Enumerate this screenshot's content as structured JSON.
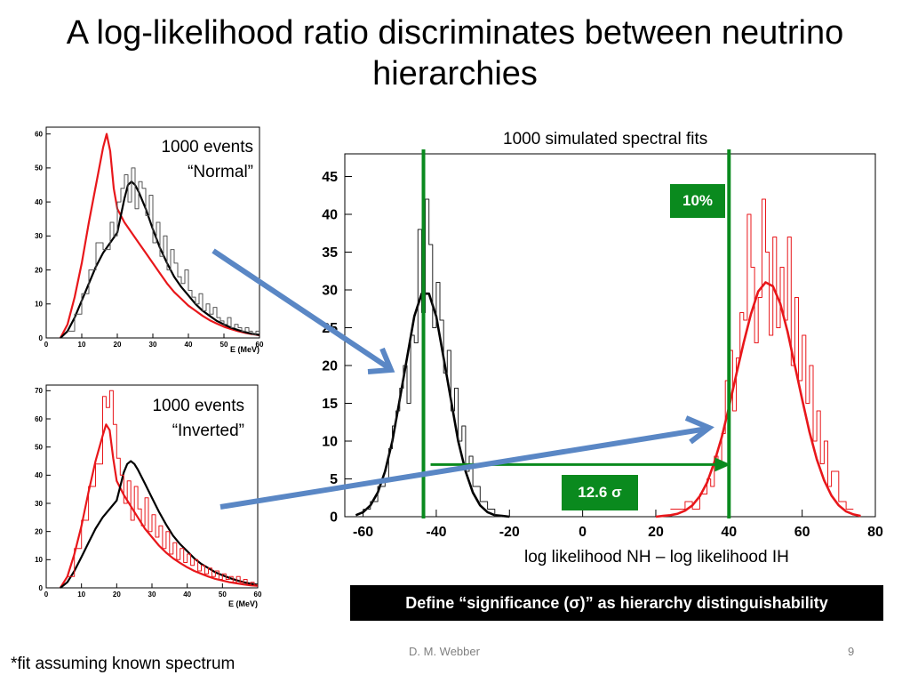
{
  "slide": {
    "title": "A log-likelihood ratio discriminates between neutrino hierarchies",
    "footnote": "*fit assuming known spectrum",
    "author": "D. M. Webber",
    "page_number": "9",
    "definition_box": "Define “significance (σ)” as hierarchy distinguishability",
    "arrow_color": "#5a87c5"
  },
  "chart_data": [
    {
      "type": "line",
      "annotation": "1000 events “Normal”",
      "xlabel": "E (MeV)",
      "xlim": [
        0,
        60
      ],
      "ylim": [
        0,
        62
      ],
      "xticks": [
        0,
        10,
        20,
        30,
        40,
        50,
        60
      ],
      "yticks": [
        0,
        10,
        20,
        30,
        40,
        50,
        60
      ],
      "series": [
        {
          "color": "#e8171b",
          "x": [
            4,
            6,
            8,
            10,
            12,
            14,
            16,
            17,
            18,
            19,
            20,
            22,
            24,
            26,
            28,
            30,
            32,
            34,
            36,
            38,
            40,
            42,
            44,
            46,
            48,
            50,
            52,
            54,
            56,
            58,
            60
          ],
          "values": [
            0,
            4,
            12,
            22,
            34,
            45,
            56,
            60,
            55,
            44,
            38,
            34,
            31,
            28,
            25,
            22,
            19,
            16,
            13.5,
            11.5,
            9.5,
            8,
            6.5,
            5.2,
            4.2,
            3.3,
            2.6,
            2,
            1.5,
            1.1,
            0.8
          ]
        },
        {
          "color": "#000000",
          "x": [
            4,
            6,
            8,
            10,
            12,
            14,
            16,
            18,
            20,
            21,
            22,
            23,
            24,
            25,
            26,
            28,
            30,
            32,
            34,
            36,
            38,
            40,
            42,
            44,
            46,
            48,
            50,
            52,
            54,
            56,
            58,
            60
          ],
          "values": [
            0,
            2,
            6,
            11,
            16,
            21,
            25,
            28,
            31,
            36,
            41,
            45,
            46,
            45,
            43,
            38,
            32,
            26.5,
            22,
            18,
            15,
            12.5,
            10,
            8,
            6.5,
            5,
            4,
            3,
            2.3,
            1.7,
            1.2,
            0.9
          ]
        },
        {
          "color": "#555555",
          "x": [
            6,
            8,
            10,
            12,
            14,
            16,
            18,
            19,
            20,
            21,
            22,
            23,
            24,
            25,
            26,
            27,
            28,
            29,
            30,
            31,
            32,
            33,
            34,
            35,
            36,
            37,
            38,
            39,
            40,
            41,
            42,
            43,
            44,
            45,
            46,
            47,
            48,
            49,
            50,
            51,
            52,
            53,
            54,
            55,
            56,
            57,
            58,
            59
          ],
          "values": [
            2,
            7,
            13,
            20,
            28,
            26,
            34,
            30,
            40,
            44,
            48,
            40,
            50,
            38,
            46,
            44,
            36,
            42,
            28,
            34,
            24,
            30,
            20,
            26,
            22,
            18,
            16,
            20,
            14,
            12,
            10,
            13,
            8,
            10,
            7,
            9,
            6,
            5,
            4,
            6,
            3,
            4,
            3,
            2,
            3,
            2,
            1,
            2
          ]
        }
      ]
    },
    {
      "type": "line",
      "annotation": "1000 events “Inverted”",
      "xlabel": "E (MeV)",
      "xlim": [
        0,
        60
      ],
      "ylim": [
        0,
        72
      ],
      "xticks": [
        0,
        10,
        20,
        30,
        40,
        50,
        60
      ],
      "yticks": [
        0,
        10,
        20,
        30,
        40,
        50,
        60,
        70
      ],
      "series": [
        {
          "color": "#e8171b",
          "x": [
            4,
            6,
            8,
            10,
            12,
            14,
            16,
            17,
            18,
            19,
            20,
            22,
            24,
            26,
            28,
            30,
            32,
            34,
            36,
            38,
            40,
            42,
            44,
            46,
            48,
            50,
            52,
            54,
            56,
            58,
            60
          ],
          "values": [
            0,
            4,
            12,
            22,
            34,
            45,
            54,
            58,
            56,
            46,
            38,
            33,
            29,
            25,
            21,
            18,
            15,
            12.5,
            10.5,
            8.8,
            7.3,
            6,
            5,
            4,
            3.2,
            2.6,
            2,
            1.6,
            1.2,
            0.9,
            0.7
          ]
        },
        {
          "color": "#000000",
          "x": [
            4,
            6,
            8,
            10,
            12,
            14,
            16,
            18,
            20,
            21,
            22,
            23,
            24,
            25,
            26,
            28,
            30,
            32,
            34,
            36,
            38,
            40,
            42,
            44,
            46,
            48,
            50,
            52,
            54,
            56,
            58,
            60
          ],
          "values": [
            0,
            2,
            6,
            11,
            16,
            21,
            25,
            28,
            31,
            36,
            41,
            44,
            45,
            44,
            42,
            37,
            32,
            27,
            22.5,
            18.5,
            15.5,
            13,
            10.5,
            8.5,
            7,
            5.5,
            4.5,
            3.5,
            2.7,
            2,
            1.5,
            1.1
          ]
        },
        {
          "color": "#e8171b",
          "x": [
            6,
            8,
            10,
            12,
            14,
            16,
            17,
            18,
            19,
            20,
            21,
            22,
            23,
            24,
            25,
            26,
            27,
            28,
            29,
            30,
            31,
            32,
            33,
            34,
            35,
            36,
            37,
            38,
            39,
            40,
            41,
            42,
            43,
            44,
            45,
            46,
            47,
            48,
            49,
            50,
            51,
            52,
            53,
            54,
            55,
            56,
            57,
            58,
            59
          ],
          "values": [
            4,
            14,
            24,
            36,
            44,
            68,
            64,
            70,
            58,
            46,
            40,
            30,
            38,
            24,
            36,
            28,
            22,
            32,
            20,
            26,
            18,
            22,
            14,
            20,
            12,
            16,
            10,
            14,
            9,
            12,
            8,
            10,
            6,
            8,
            5,
            7,
            4,
            6,
            3,
            5,
            3,
            4,
            2,
            4,
            2,
            3,
            1,
            2,
            1
          ]
        }
      ]
    },
    {
      "type": "line",
      "title": "1000 simulated spectral fits",
      "xlabel": "log likelihood NH – log likelihood IH",
      "xlim": [
        -65,
        80
      ],
      "ylim": [
        0,
        48
      ],
      "xticks": [
        -60,
        -40,
        -20,
        0,
        20,
        40,
        60,
        80
      ],
      "yticks": [
        0,
        5,
        10,
        15,
        20,
        25,
        30,
        35,
        40,
        45
      ],
      "vlines": [
        -43.5,
        40
      ],
      "annotations": [
        "10%",
        "12.6 σ"
      ],
      "series": [
        {
          "color": "#000000",
          "x": [
            -62,
            -60,
            -58,
            -56,
            -54,
            -52,
            -50,
            -48,
            -46,
            -44,
            -42,
            -40,
            -38,
            -36,
            -34,
            -32,
            -30,
            -28,
            -26,
            -24,
            -22,
            -20
          ],
          "values": [
            0.2,
            0.6,
            1.5,
            3.2,
            6,
            10,
            15.5,
            21,
            26.5,
            29.5,
            29.5,
            26.5,
            21,
            15.5,
            10,
            6,
            3.2,
            1.5,
            0.6,
            0.2,
            0.1,
            0
          ]
        },
        {
          "color": "#e8171b",
          "x": [
            20,
            22,
            24,
            26,
            28,
            30,
            32,
            34,
            36,
            38,
            40,
            42,
            44,
            46,
            48,
            50,
            52,
            54,
            56,
            58,
            60,
            62,
            64,
            66,
            68,
            70,
            72,
            74,
            76
          ],
          "values": [
            0,
            0.1,
            0.2,
            0.4,
            0.8,
            1.5,
            2.7,
            4.5,
            7.2,
            10.5,
            14.5,
            18.8,
            23,
            26.8,
            29.8,
            31,
            30.5,
            28.2,
            24.5,
            20,
            15.5,
            11.2,
            7.6,
            4.8,
            2.8,
            1.5,
            0.7,
            0.3,
            0.1
          ]
        },
        {
          "color": "#222222",
          "x": [
            -60,
            -58,
            -56,
            -54,
            -53,
            -52,
            -51,
            -50,
            -49,
            -48,
            -47,
            -46,
            -45,
            -44,
            -43,
            -42,
            -41,
            -40,
            -39,
            -38,
            -37,
            -36,
            -35,
            -34,
            -33,
            -32,
            -31,
            -30,
            -28,
            -26,
            -24
          ],
          "values": [
            1,
            2,
            4,
            5,
            9,
            12,
            14,
            17,
            20,
            15,
            24,
            23,
            38,
            27,
            42,
            36,
            25,
            31,
            26,
            19,
            22,
            14,
            17,
            10,
            12,
            6,
            8,
            4,
            2,
            1,
            0
          ]
        },
        {
          "color": "#e8171b",
          "x": [
            24,
            26,
            28,
            30,
            32,
            34,
            35,
            36,
            37,
            38,
            39,
            40,
            41,
            42,
            43,
            44,
            45,
            46,
            47,
            48,
            49,
            50,
            51,
            52,
            53,
            54,
            55,
            56,
            57,
            58,
            59,
            60,
            61,
            62,
            63,
            64,
            65,
            66,
            67,
            68,
            70,
            72
          ],
          "values": [
            1,
            1,
            2,
            1,
            3,
            5,
            4,
            8,
            7,
            11,
            18,
            22,
            14,
            21,
            27,
            26,
            40,
            33,
            23,
            29,
            42,
            35,
            24,
            37,
            25,
            33,
            26,
            37,
            20,
            29,
            18,
            24,
            15,
            20,
            10,
            14,
            7,
            10,
            4,
            6,
            2,
            1
          ]
        }
      ]
    }
  ]
}
